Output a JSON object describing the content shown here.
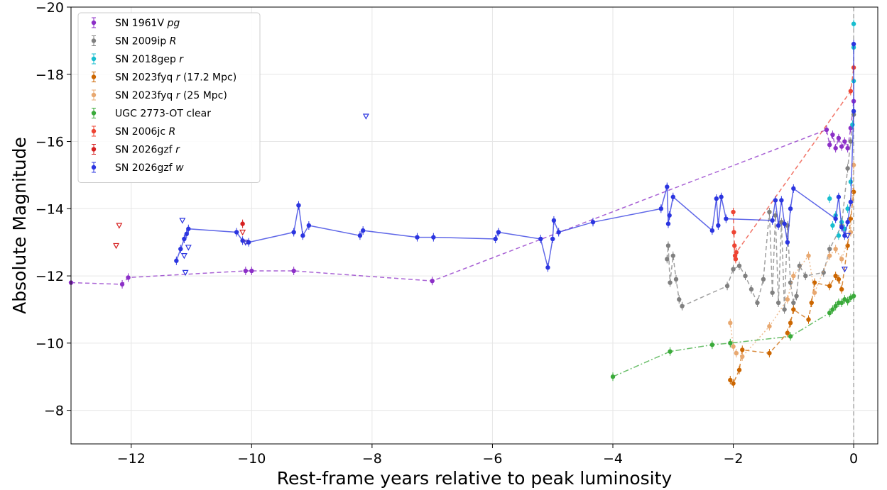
{
  "chart_data": {
    "type": "scatter",
    "xlabel": "Rest-frame years relative to peak luminosity",
    "ylabel": "Absolute Magnitude",
    "xlim": [
      -13,
      0.4
    ],
    "ylim": [
      -7,
      -20
    ],
    "x_ticks": [
      -12,
      -10,
      -8,
      -6,
      -4,
      -2,
      0
    ],
    "y_ticks": [
      -8,
      -10,
      -12,
      -14,
      -16,
      -18,
      -20
    ],
    "x_tick_labels": [
      "−12",
      "−10",
      "−8",
      "−6",
      "−4",
      "−2",
      "0"
    ],
    "y_tick_labels": [
      "−8",
      "−10",
      "−12",
      "−14",
      "−16",
      "−18",
      "−20"
    ],
    "grid": true,
    "legend_position": "top-left",
    "peak_line_x": 0,
    "series": [
      {
        "name": "SN 1961V",
        "band": "pg",
        "color": "#8c2fc7",
        "line": "dashed",
        "x": [
          -13.0,
          -12.15,
          -12.05,
          -10.1,
          -10.0,
          -9.3,
          -7.0,
          -0.45,
          -0.4,
          -0.35,
          -0.3,
          -0.25,
          -0.2,
          -0.15,
          -0.1,
          -0.05,
          0.0
        ],
        "y": [
          -11.8,
          -11.75,
          -11.95,
          -12.15,
          -12.15,
          -12.15,
          -11.85,
          -16.35,
          -15.9,
          -16.2,
          -15.8,
          -16.1,
          -15.85,
          -16.0,
          -15.8,
          -16.4,
          -17.2
        ]
      },
      {
        "name": "SN 2009ip",
        "band": "R",
        "color": "#808080",
        "line": "dashed",
        "x": [
          -3.1,
          -3.08,
          -3.05,
          -3.0,
          -2.95,
          -2.9,
          -2.85,
          -2.1,
          -2.0,
          -1.9,
          -1.8,
          -1.7,
          -1.6,
          -1.5,
          -1.4,
          -1.35,
          -1.3,
          -1.25,
          -1.2,
          -1.15,
          -1.1,
          -1.05,
          -1.0,
          -0.95,
          -0.9,
          -0.8,
          -0.5,
          -0.4,
          -0.2,
          -0.1,
          -0.05,
          0.0
        ],
        "y": [
          -12.5,
          -12.9,
          -11.8,
          -12.6,
          -11.9,
          -11.3,
          -11.1,
          -11.7,
          -12.2,
          -12.3,
          -12.0,
          -11.6,
          -11.2,
          -11.9,
          -13.9,
          -11.5,
          -13.8,
          -11.2,
          -13.6,
          -11.0,
          -13.5,
          -11.8,
          -11.2,
          -11.4,
          -12.3,
          -12.0,
          -12.1,
          -12.8,
          -13.5,
          -15.2,
          -16.0,
          -16.8
        ]
      },
      {
        "name": "SN 2018gep",
        "band": "r",
        "color": "#17becf",
        "line": "none",
        "x": [
          -0.4,
          -0.35,
          -0.3,
          -0.25,
          -0.2,
          -0.15,
          -0.1,
          -0.05,
          -0.02,
          0.0,
          0.0,
          0.0
        ],
        "y": [
          -14.3,
          -13.5,
          -13.8,
          -13.2,
          -13.6,
          -13.4,
          -14.0,
          -14.8,
          -16.5,
          -17.8,
          -18.8,
          -19.5
        ]
      },
      {
        "name": "SN 2023fyq",
        "band": "r",
        "suffix": "(17.2 Mpc)",
        "color": "#cc6600",
        "line": "dashed",
        "x": [
          -2.05,
          -2.0,
          -1.9,
          -1.85,
          -1.4,
          -1.1,
          -1.05,
          -1.0,
          -0.75,
          -0.7,
          -0.65,
          -0.4,
          -0.3,
          -0.25,
          -0.2,
          -0.1,
          -0.05,
          0.0
        ],
        "y": [
          -8.9,
          -8.8,
          -9.2,
          -9.8,
          -9.7,
          -10.3,
          -10.6,
          -11.0,
          -10.7,
          -11.2,
          -11.8,
          -11.7,
          -12.0,
          -11.9,
          -11.6,
          -12.9,
          -13.7,
          -14.5
        ]
      },
      {
        "name": "SN 2023fyq",
        "band": "r",
        "suffix": "(25 Mpc)",
        "color": "#e8a870",
        "line": "dotted",
        "x": [
          -2.05,
          -2.0,
          -1.95,
          -1.85,
          -1.4,
          -1.1,
          -1.0,
          -0.75,
          -0.65,
          -0.4,
          -0.3,
          -0.2,
          -0.05,
          0.0
        ],
        "y": [
          -10.6,
          -9.9,
          -9.7,
          -9.6,
          -10.5,
          -11.3,
          -12.0,
          -12.6,
          -11.5,
          -12.6,
          -12.8,
          -12.5,
          -13.3,
          -15.3
        ]
      },
      {
        "name": "UGC 2773-OT",
        "band": "",
        "suffix": "clear",
        "color": "#3aaa3a",
        "line": "dashdot",
        "x": [
          -4.0,
          -3.05,
          -2.35,
          -2.05,
          -1.05,
          -0.4,
          -0.35,
          -0.3,
          -0.25,
          -0.2,
          -0.15,
          -0.1,
          -0.05,
          0.0
        ],
        "y": [
          -9.0,
          -9.75,
          -9.95,
          -10.0,
          -10.2,
          -10.9,
          -11.0,
          -11.1,
          -11.2,
          -11.2,
          -11.3,
          -11.25,
          -11.35,
          -11.4
        ]
      },
      {
        "name": "SN 2006jc",
        "band": "R",
        "color": "#ee4433",
        "line": "dashed",
        "x": [
          -2.0,
          -1.99,
          -1.98,
          -1.97,
          -1.96,
          -1.95,
          -0.05,
          0.0
        ],
        "y": [
          -13.9,
          -13.3,
          -12.9,
          -12.6,
          -12.5,
          -12.7,
          -17.5,
          -18.2
        ]
      },
      {
        "name": "SN 2026gzf",
        "band": "r",
        "color": "#d62020",
        "line": "none",
        "x": [
          -10.15
        ],
        "y": [
          -13.55
        ]
      },
      {
        "name": "SN 2026gzf",
        "band": "w",
        "color": "#2b35e0",
        "line": "solid",
        "x": [
          -11.25,
          -11.18,
          -11.12,
          -11.08,
          -11.05,
          -10.25,
          -10.15,
          -10.05,
          -9.3,
          -9.22,
          -9.15,
          -9.05,
          -8.2,
          -8.15,
          -7.25,
          -6.98,
          -5.95,
          -5.9,
          -5.2,
          -5.08,
          -5.0,
          -4.98,
          -4.9,
          -4.33,
          -3.2,
          -3.1,
          -3.08,
          -3.06,
          -3.0,
          -2.35,
          -2.28,
          -2.25,
          -2.2,
          -2.12,
          -1.35,
          -1.3,
          -1.25,
          -1.2,
          -1.15,
          -1.1,
          -1.05,
          -1.0,
          -0.3,
          -0.25,
          -0.2,
          -0.15,
          -0.1,
          -0.05,
          0.0,
          0.0
        ],
        "y": [
          -12.45,
          -12.8,
          -13.1,
          -13.25,
          -13.4,
          -13.3,
          -13.05,
          -13.0,
          -13.3,
          -14.1,
          -13.2,
          -13.5,
          -13.2,
          -13.35,
          -13.15,
          -13.15,
          -13.1,
          -13.3,
          -13.1,
          -12.25,
          -13.1,
          -13.65,
          -13.3,
          -13.6,
          -14.0,
          -14.65,
          -13.55,
          -13.8,
          -14.35,
          -13.35,
          -14.3,
          -13.5,
          -14.35,
          -13.7,
          -13.65,
          -14.25,
          -13.5,
          -14.25,
          -13.55,
          -13.0,
          -14.0,
          -14.6,
          -13.7,
          -14.35,
          -13.45,
          -13.2,
          -13.6,
          -14.2,
          -16.9,
          -18.9
        ]
      }
    ],
    "upper_limits": [
      {
        "color": "#d62020",
        "x": [
          -12.25,
          -12.2,
          -10.15,
          -10.1
        ],
        "y": [
          -12.9,
          -13.5,
          -13.3,
          -13.0
        ]
      },
      {
        "color": "#2b35e0",
        "x": [
          -11.15,
          -11.12,
          -11.1,
          -11.05,
          -10.1,
          -8.1,
          -0.15,
          -0.1
        ],
        "y": [
          -13.65,
          -12.6,
          -12.1,
          -12.85,
          -13.0,
          -16.75,
          -12.2,
          -13.2
        ]
      }
    ]
  }
}
